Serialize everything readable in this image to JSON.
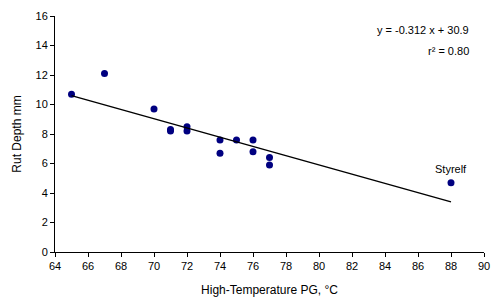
{
  "chart_data": {
    "type": "scatter",
    "x_label": "High-Temperature PG, °C",
    "y_label": "Rut Depth mm",
    "xlim": [
      64,
      90
    ],
    "xticks": [
      64,
      66,
      68,
      70,
      72,
      74,
      76,
      78,
      80,
      82,
      84,
      86,
      88,
      90
    ],
    "ylim": [
      0,
      16
    ],
    "yticks": [
      0,
      2,
      4,
      6,
      8,
      10,
      12,
      14,
      16
    ],
    "grid": false,
    "series": [
      {
        "type": "scatter",
        "color": "#000080",
        "marker": "circle",
        "x": [
          65,
          67,
          70,
          71,
          71,
          72,
          72,
          74,
          74,
          75,
          76,
          76,
          77,
          77,
          88
        ],
        "values": [
          10.7,
          12.1,
          9.7,
          8.3,
          8.2,
          8.5,
          8.2,
          7.6,
          6.7,
          7.6,
          7.6,
          6.8,
          6.4,
          5.9,
          4.7
        ]
      },
      {
        "type": "line",
        "color": "#000000",
        "line_style": "solid",
        "x": [
          65,
          88
        ],
        "values": [
          10.6,
          3.4
        ]
      }
    ],
    "annotations": [
      {
        "text": "y = -0.312 x + 30.9"
      },
      {
        "text": "r² = 0.80"
      },
      {
        "text": "Styrelf",
        "x": 88,
        "y": 4.7
      }
    ]
  }
}
